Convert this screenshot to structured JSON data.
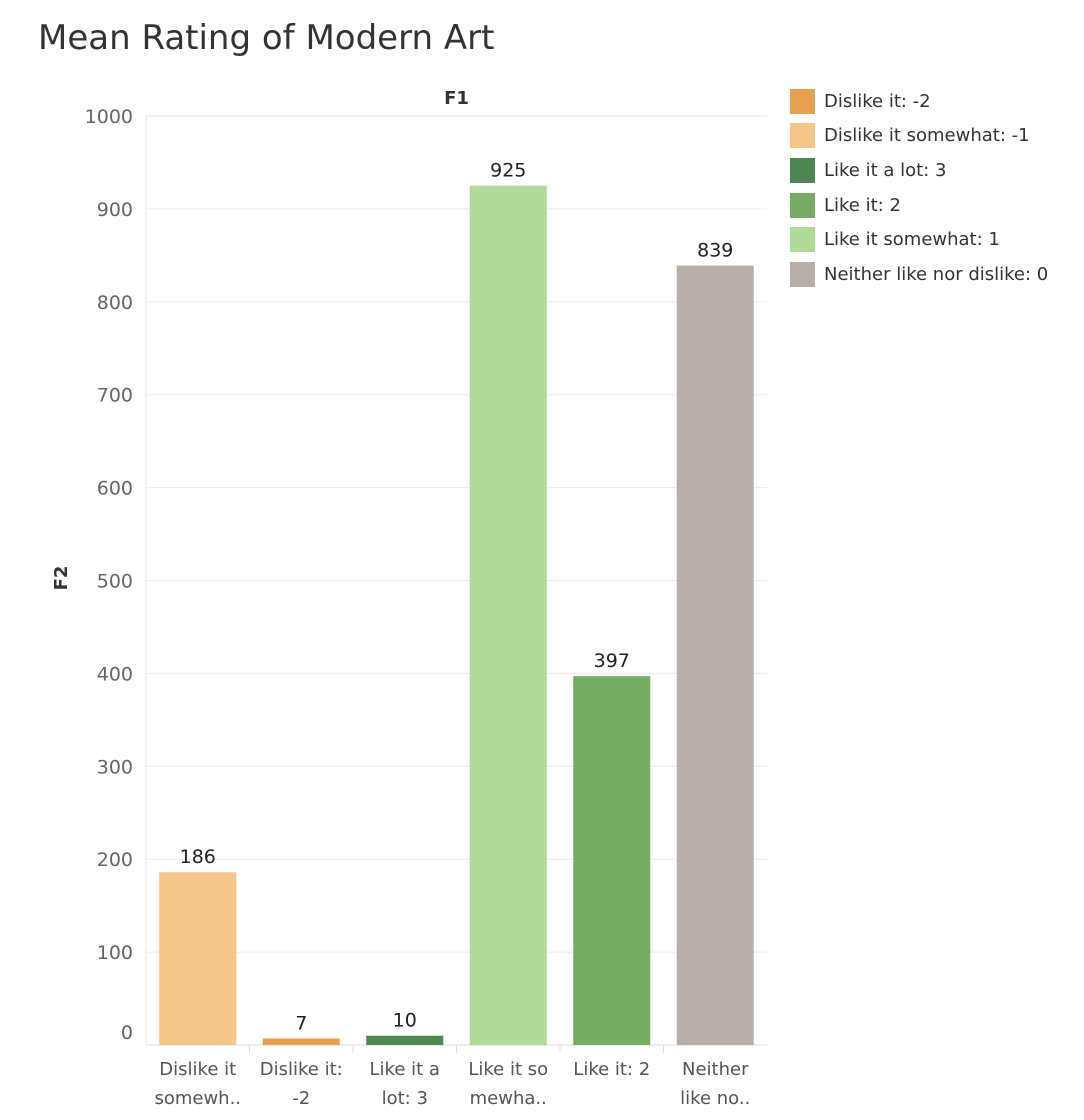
{
  "chart_data": {
    "type": "bar",
    "title": "Mean Rating of Modern Art",
    "header": "F1",
    "ylabel": "F2",
    "xlabel": "",
    "ylim": [
      0,
      1000
    ],
    "yticks": [
      0,
      100,
      200,
      300,
      400,
      500,
      600,
      700,
      800,
      900,
      1000
    ],
    "grid": true,
    "legend_position": "right",
    "categories": [
      [
        "Dislike it",
        "somewh.."
      ],
      [
        "Dislike it:",
        "-2"
      ],
      [
        "Like it a",
        "lot: 3"
      ],
      [
        "Like it so",
        "mewha.."
      ],
      [
        "Like it: 2"
      ],
      [
        "Neither",
        "like no.."
      ]
    ],
    "values": [
      186,
      7,
      10,
      925,
      397,
      839
    ],
    "colors": [
      "#F5C68A",
      "#E9A050",
      "#4E8550",
      "#B0D99A",
      "#76AC62",
      "#B7ADA9"
    ],
    "legend": [
      {
        "label": "Dislike it: -2",
        "color": "#E9A050"
      },
      {
        "label": "Dislike it somewhat: -1",
        "color": "#F5C68A"
      },
      {
        "label": "Like it a lot: 3",
        "color": "#4E8550"
      },
      {
        "label": "Like it: 2",
        "color": "#76AC62"
      },
      {
        "label": "Like it somewhat: 1",
        "color": "#B0D99A"
      },
      {
        "label": "Neither like nor dislike: 0",
        "color": "#B7ADA9"
      }
    ]
  }
}
